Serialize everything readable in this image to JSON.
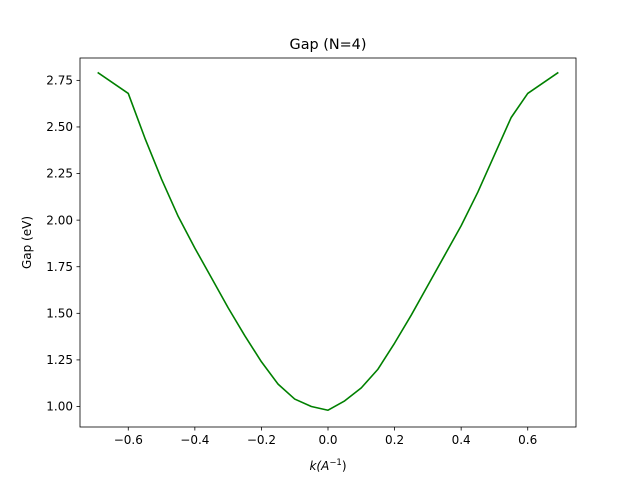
{
  "chart_data": {
    "type": "line",
    "title": "Gap (N=4)",
    "xlabel": "k(A^-1)",
    "xlabel_base": "k(A",
    "xlabel_sup": "−1",
    "xlabel_close": ")",
    "ylabel": "Gap (eV)",
    "xlim": [
      -0.745,
      0.745
    ],
    "ylim": [
      0.89,
      2.87
    ],
    "xticks": [
      -0.6,
      -0.4,
      -0.2,
      0.0,
      0.2,
      0.4,
      0.6
    ],
    "xtick_labels": [
      "−0.6",
      "−0.4",
      "−0.2",
      "0.0",
      "0.2",
      "0.4",
      "0.6"
    ],
    "yticks": [
      1.0,
      1.25,
      1.5,
      1.75,
      2.0,
      2.25,
      2.5,
      2.75
    ],
    "ytick_labels": [
      "1.00",
      "1.25",
      "1.50",
      "1.75",
      "2.00",
      "2.25",
      "2.50",
      "2.75"
    ],
    "grid": false,
    "legend": "none",
    "series": [
      {
        "color": "#008000",
        "x": [
          -0.69,
          -0.6,
          -0.55,
          -0.5,
          -0.45,
          -0.4,
          -0.35,
          -0.3,
          -0.25,
          -0.2,
          -0.15,
          -0.1,
          -0.05,
          0.0,
          0.05,
          0.1,
          0.15,
          0.2,
          0.25,
          0.3,
          0.35,
          0.4,
          0.45,
          0.5,
          0.55,
          0.6,
          0.69
        ],
        "y": [
          2.79,
          2.68,
          2.44,
          2.22,
          2.02,
          1.85,
          1.69,
          1.53,
          1.38,
          1.24,
          1.12,
          1.04,
          1.0,
          0.98,
          1.03,
          1.1,
          1.2,
          1.34,
          1.49,
          1.65,
          1.81,
          1.97,
          2.15,
          2.35,
          2.55,
          2.68,
          2.79
        ]
      }
    ]
  }
}
